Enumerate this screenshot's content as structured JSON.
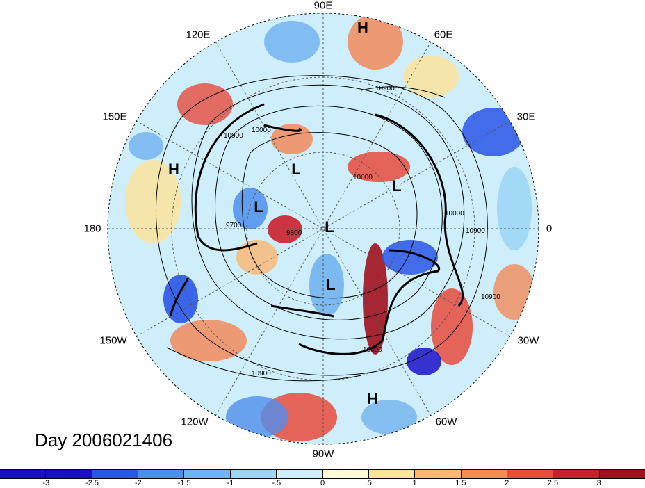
{
  "map": {
    "projection": "north polar stereographic",
    "contour_unit_labels": [
      "10900",
      "10900",
      "10000",
      "10000",
      "10900",
      "10900",
      "9700",
      "9800",
      "10900",
      "10000",
      "10000"
    ],
    "longitude_labels": [
      "90E",
      "60E",
      "30E",
      "0",
      "30W",
      "60W",
      "90W",
      "120W",
      "150W",
      "180",
      "150E",
      "120E"
    ],
    "pressure_centers": [
      "H",
      "H",
      "H",
      "L",
      "L",
      "L",
      "L",
      "L"
    ],
    "date_label": "Day 2006021406"
  },
  "colorbar": {
    "tick_labels": [
      "-3",
      "-2.5",
      "-2",
      "-1.5",
      "-1",
      "-.5",
      "0",
      ".5",
      "1",
      "1.5",
      "2",
      "2.5",
      "3"
    ],
    "colors": [
      "#1a10c8",
      "#2a55e6",
      "#4f8fec",
      "#73b3f0",
      "#9dd6f5",
      "#cdeefa",
      "#fdfbd6",
      "#fbe3a2",
      "#f8b878",
      "#f28a5a",
      "#e94b3c",
      "#cc1f2c",
      "#a3101d"
    ]
  }
}
